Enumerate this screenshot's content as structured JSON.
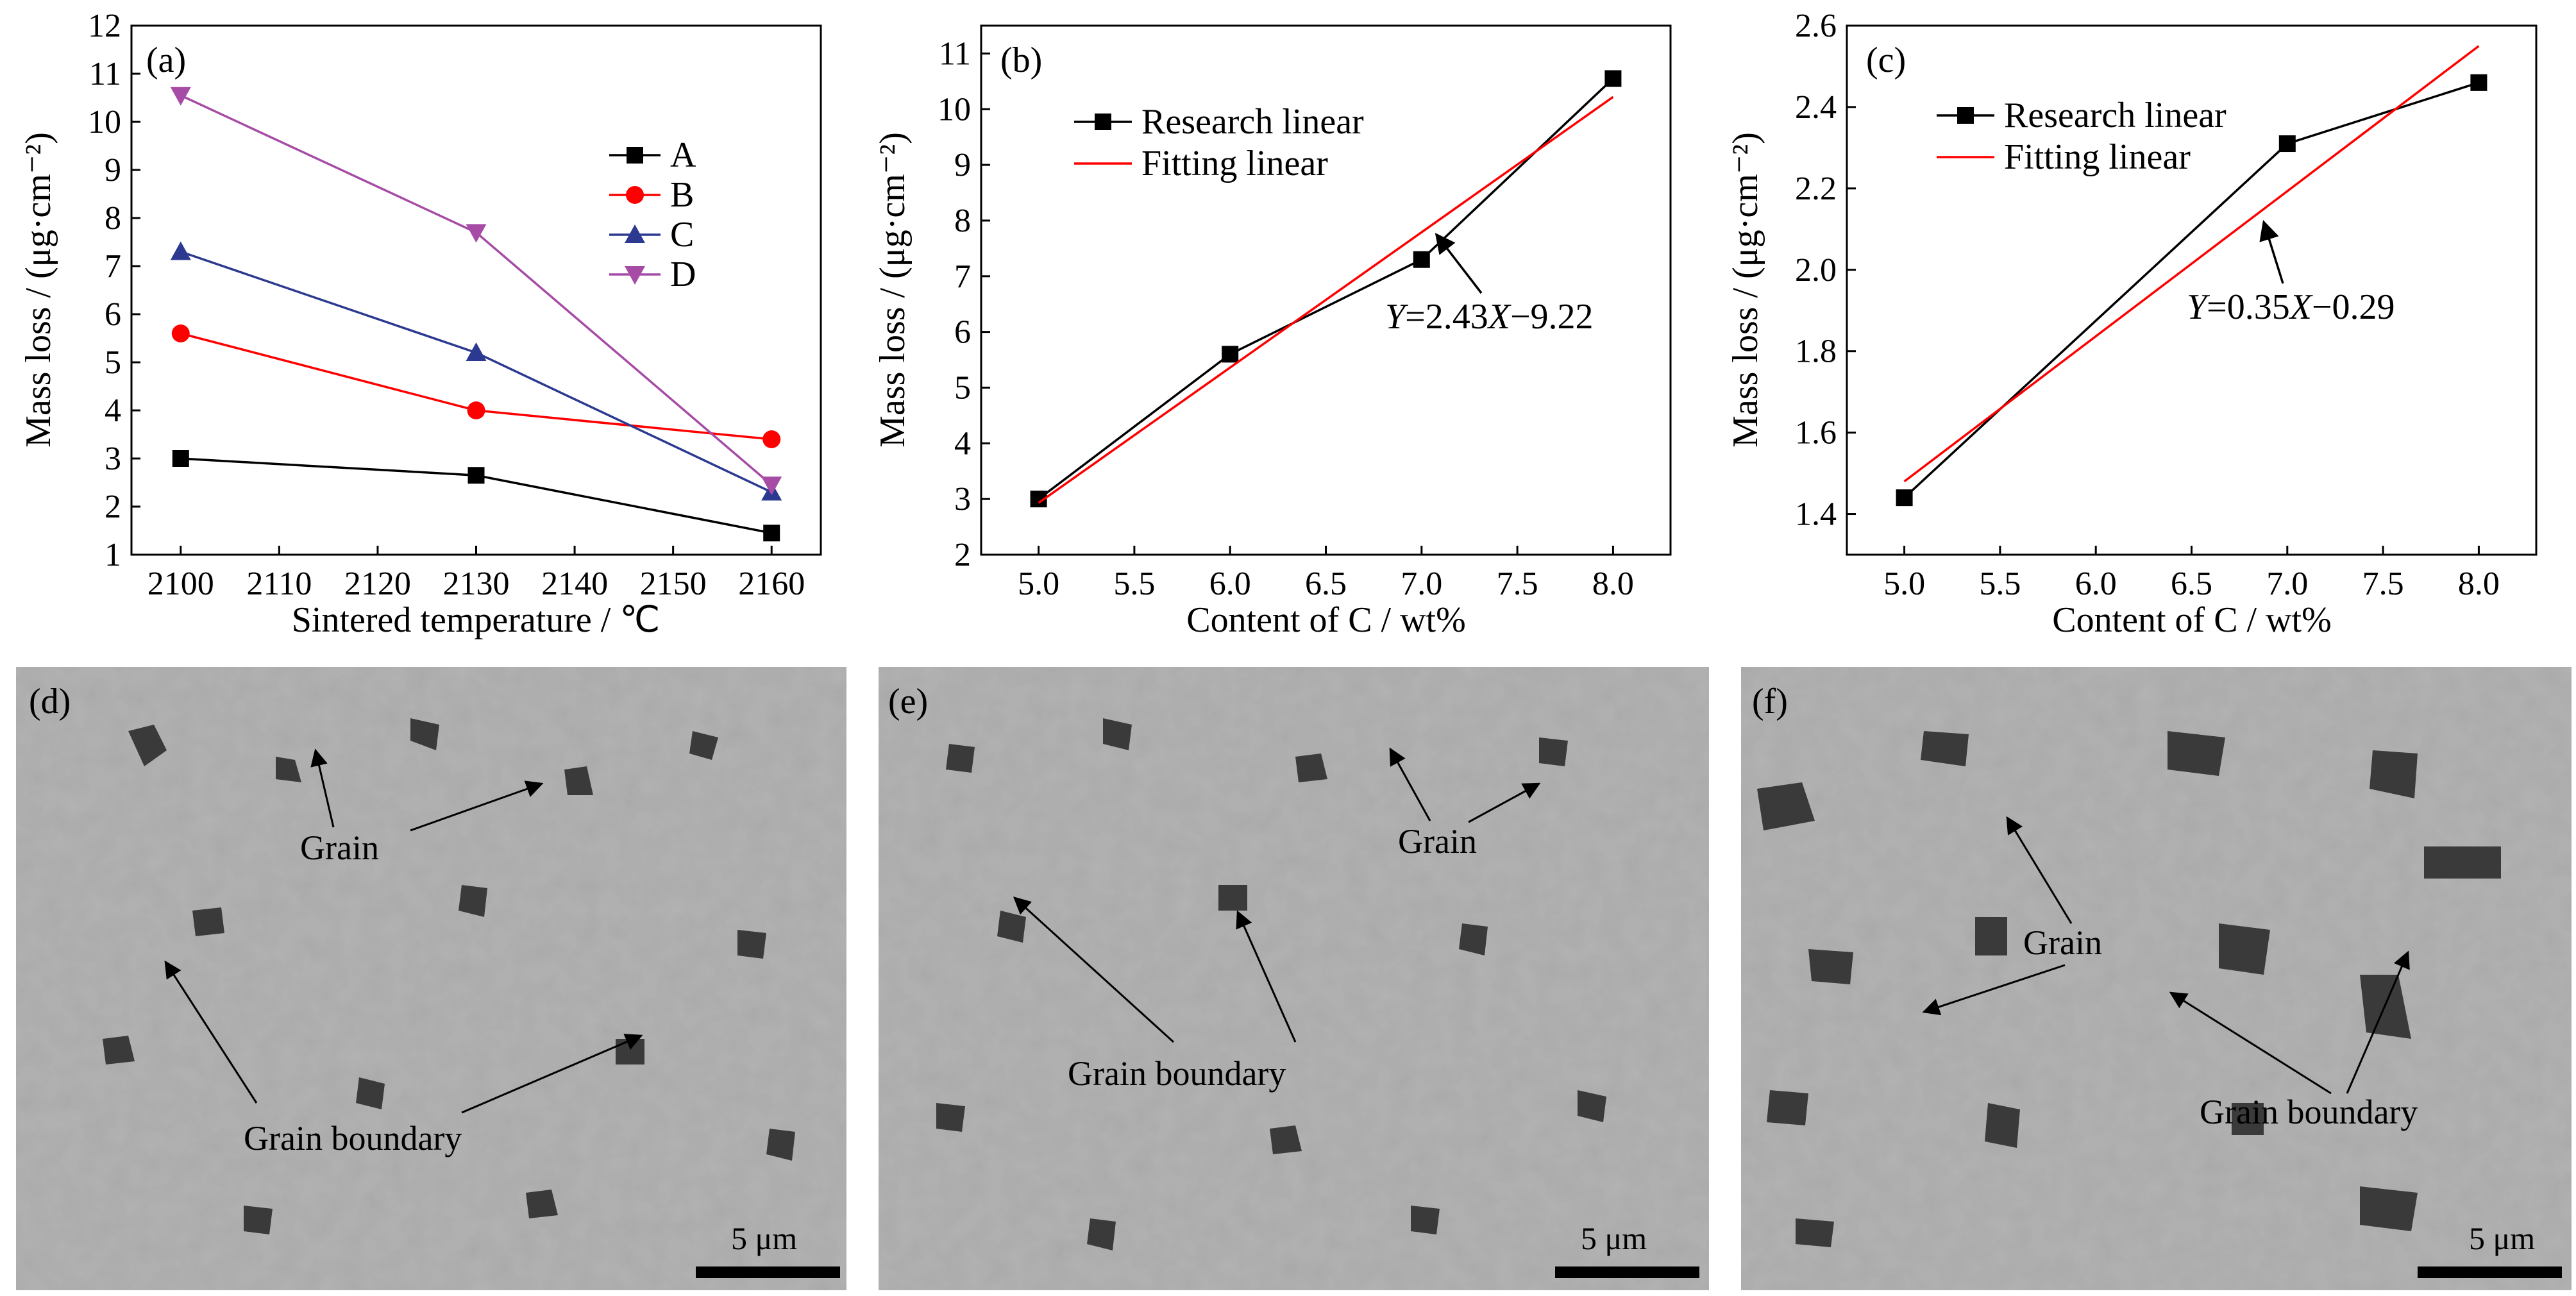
{
  "chart_data": [
    {
      "panel": "(a)",
      "type": "line",
      "xlabel": "Sintered temperature / ℃",
      "ylabel": "Mass loss / (μg·cm⁻²)",
      "xlim": [
        2095,
        2165
      ],
      "ylim": [
        1,
        12
      ],
      "xticks": [
        2100,
        2110,
        2120,
        2130,
        2140,
        2150,
        2160
      ],
      "yticks": [
        1,
        2,
        3,
        4,
        5,
        6,
        7,
        8,
        9,
        10,
        11,
        12
      ],
      "x": [
        2100,
        2130,
        2160
      ],
      "legend_position": "upper-right",
      "series": [
        {
          "name": "A",
          "color": "#000000",
          "marker": "square",
          "values": [
            3.0,
            2.65,
            1.45
          ]
        },
        {
          "name": "B",
          "color": "#ff0000",
          "marker": "circle",
          "values": [
            5.6,
            4.0,
            3.4
          ]
        },
        {
          "name": "C",
          "color": "#2b3990",
          "marker": "triangle-up",
          "values": [
            7.3,
            5.2,
            2.3
          ]
        },
        {
          "name": "D",
          "color": "#a64ca6",
          "marker": "triangle-down",
          "values": [
            10.55,
            7.7,
            2.45
          ]
        }
      ]
    },
    {
      "panel": "(b)",
      "type": "line",
      "xlabel": "Content of C / wt%",
      "ylabel": "Mass loss / (μg·cm⁻²)",
      "xlim": [
        4.7,
        8.3
      ],
      "ylim": [
        2,
        11.5
      ],
      "xticks": [
        5.0,
        5.5,
        6.0,
        6.5,
        7.0,
        7.5,
        8.0
      ],
      "yticks": [
        2,
        3,
        4,
        5,
        6,
        7,
        8,
        9,
        10,
        11
      ],
      "legend_position": "upper-left",
      "series": [
        {
          "name": "Research linear",
          "color": "#000000",
          "marker": "square",
          "x": [
            5.0,
            6.0,
            7.0,
            8.0
          ],
          "values": [
            3.0,
            5.6,
            7.3,
            10.55
          ]
        },
        {
          "name": "Fitting linear",
          "color": "#ff0000",
          "marker": "none",
          "x": [
            5.0,
            8.0
          ],
          "values": [
            2.93,
            10.22
          ]
        }
      ],
      "annotation": {
        "text_y": "Y",
        "text_rest": "=2.43",
        "text_x": "X",
        "text_tail": "−9.22",
        "points_to_x": 7.05
      }
    },
    {
      "panel": "(c)",
      "type": "line",
      "xlabel": "Content of C / wt%",
      "ylabel": "Mass loss / (μg·cm⁻²)",
      "xlim": [
        4.7,
        8.3
      ],
      "ylim": [
        1.3,
        2.6
      ],
      "xticks": [
        5.0,
        5.5,
        6.0,
        6.5,
        7.0,
        7.5,
        8.0
      ],
      "yticks": [
        1.4,
        1.6,
        1.8,
        2.0,
        2.2,
        2.4,
        2.6
      ],
      "legend_position": "upper-left",
      "series": [
        {
          "name": "Research linear",
          "color": "#000000",
          "marker": "square",
          "x": [
            5.0,
            7.0,
            8.0
          ],
          "values": [
            1.44,
            2.31,
            2.46
          ]
        },
        {
          "name": "Fitting linear",
          "color": "#ff0000",
          "marker": "none",
          "x": [
            5.0,
            8.0
          ],
          "values": [
            1.48,
            2.55
          ]
        }
      ],
      "annotation": {
        "text_y": "Y",
        "text_rest": "=0.35",
        "text_x": "X",
        "text_tail": "−0.29",
        "points_to_x": 6.85
      }
    }
  ],
  "micrographs": [
    {
      "panel": "(d)",
      "grain_label": "Grain",
      "boundary_label": "Grain boundary",
      "scale_bar": "5 μm"
    },
    {
      "panel": "(e)",
      "grain_label": "Grain",
      "boundary_label": "Grain boundary",
      "scale_bar": "5 μm"
    },
    {
      "panel": "(f)",
      "grain_label": "Grain",
      "boundary_label": "Grain boundary",
      "scale_bar": "5 μm"
    }
  ]
}
